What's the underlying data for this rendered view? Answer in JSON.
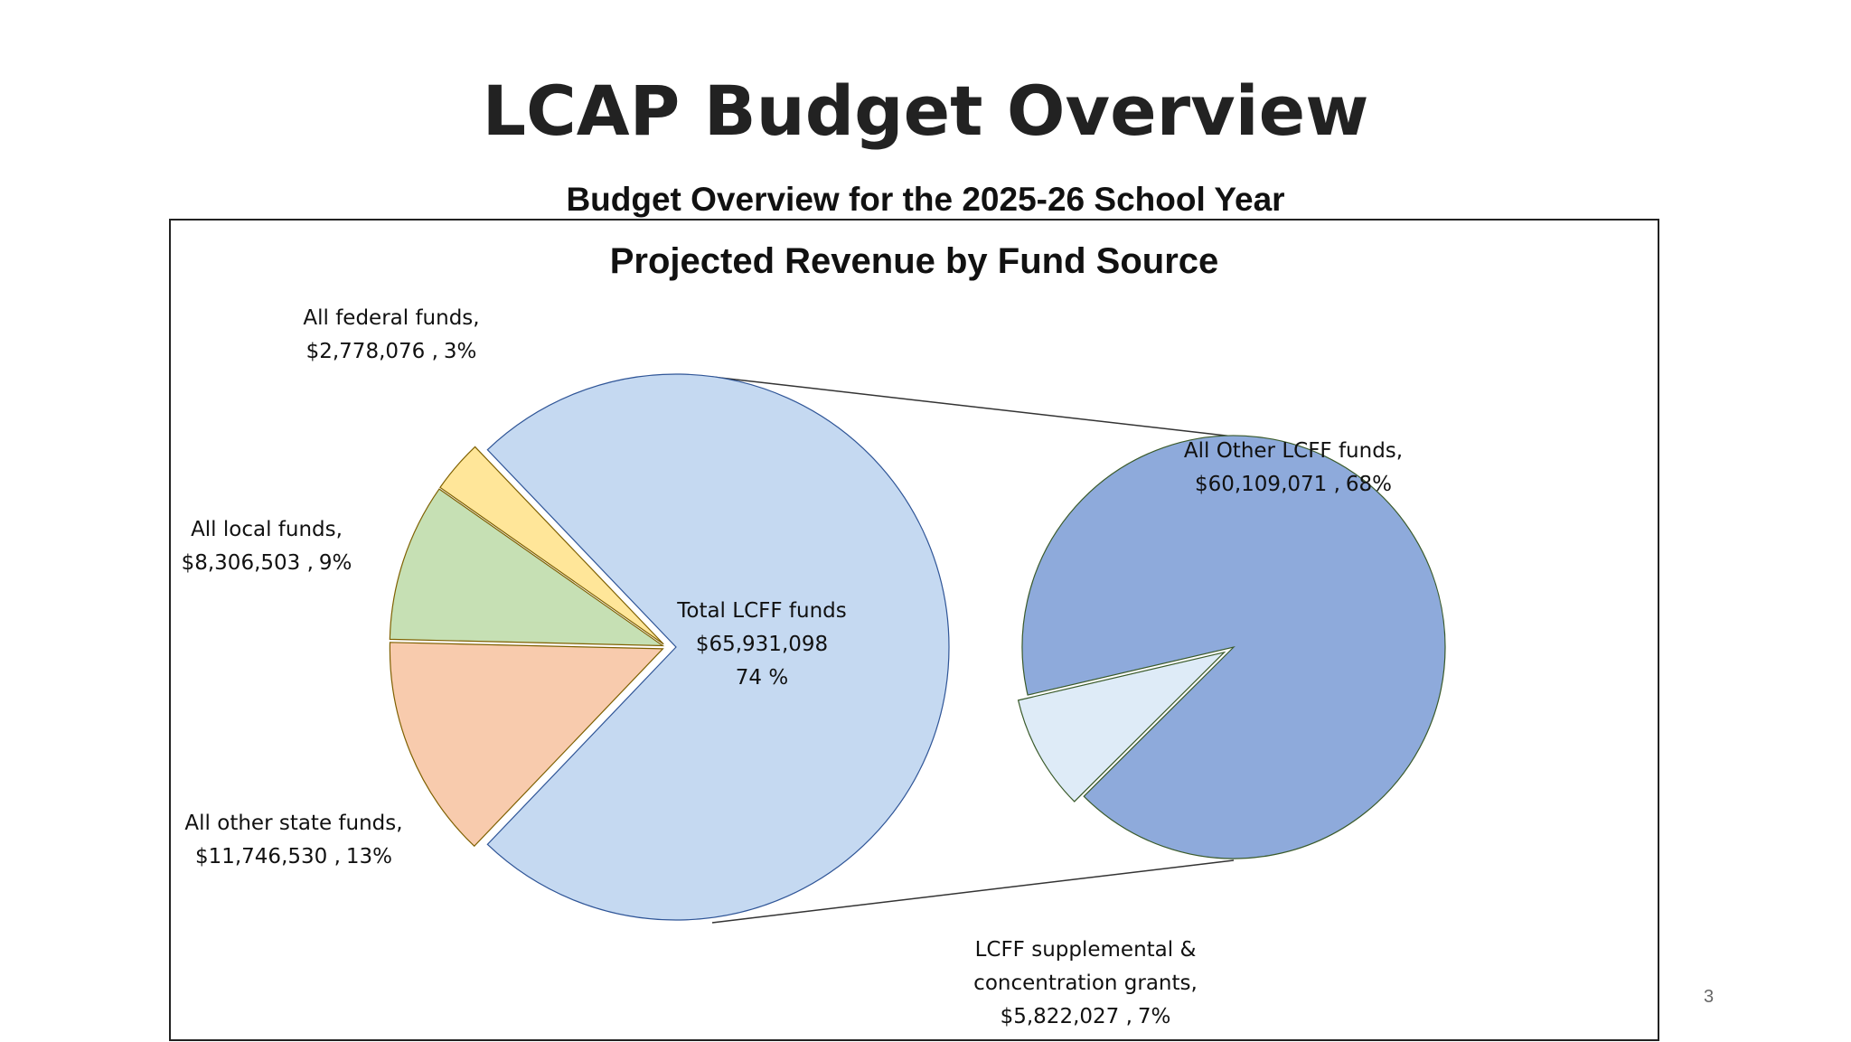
{
  "page": {
    "title": "LCAP Budget Overview",
    "page_number": "3"
  },
  "chart_data": {
    "type": "pie",
    "subtitle": "Budget Overview for the 2025-26 School Year",
    "title": "Projected Revenue by Fund Source",
    "categories": [
      "Total LCFF funds",
      "All federal funds,",
      "All local funds,",
      "All other state funds,"
    ],
    "values": [
      65931098,
      2778076,
      8306503,
      11746530
    ],
    "value_labels": [
      "$65,931,098",
      "$2,778,076 ,",
      "$8,306,503 ,",
      "$11,746,530 ,"
    ],
    "percent_labels": [
      "74 %",
      "3%",
      "9%",
      "13%"
    ],
    "colors": [
      "#c5d9f1",
      "#ffe699",
      "#c6e0b4",
      "#f8cbad"
    ],
    "breakdown": {
      "categories": [
        "All Other LCFF funds,",
        "LCFF supplemental & concentration grants,"
      ],
      "values": [
        60109071,
        5822027
      ],
      "value_labels": [
        "$60,109,071 ,",
        "$5,822,027 ,"
      ],
      "percent_labels": [
        "68%",
        "7%"
      ],
      "colors": [
        "#8eaadb",
        "#deebf7"
      ]
    }
  }
}
